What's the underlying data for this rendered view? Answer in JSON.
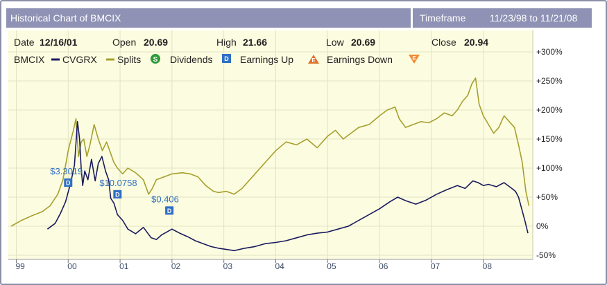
{
  "header": {
    "title": "Historical Chart of BMCIX",
    "timeframe_label": "Timeframe",
    "range": "11/23/98 to 11/21/08"
  },
  "ohlc": {
    "date_label": "Date",
    "date": "12/16/01",
    "open_label": "Open",
    "open": "20.69",
    "high_label": "High",
    "high": "21.66",
    "low_label": "Low",
    "low": "20.69",
    "close_label": "Close",
    "close": "20.94"
  },
  "legend": {
    "bmcix": "BMCIX",
    "cvgrx": "CVGRX",
    "splits": "Splits",
    "splits_icon_letter": "S",
    "dividends": "Dividends",
    "dividends_icon_letter": "D",
    "earnings_up": "Earnings Up",
    "earnings_up_icon_letter": "E",
    "earnings_down": "Earnings Down",
    "earnings_down_icon_letter": "E"
  },
  "colors": {
    "bmcix": "#1a1a5e",
    "cvgrx": "#a5a02e",
    "plot_bg": "#fcfce0",
    "grid": "#e2e2c4",
    "header_bg": "#8f92b4",
    "dividend_marker": "#2f6fc4",
    "splits_icon": "#2e9a3a",
    "earnings_up_icon": "#e07028",
    "earnings_down_icon": "#f08a30"
  },
  "icons": {
    "splits": "green-circle-s-icon",
    "dividends": "blue-square-d-icon",
    "earnings_up": "orange-triangle-up-e-icon",
    "earnings_down": "orange-triangle-down-e-icon"
  },
  "chart_data": {
    "type": "line",
    "y_unit": "percent change",
    "ylim": [
      -50,
      300
    ],
    "y_ticks": [
      -50,
      0,
      50,
      100,
      150,
      200,
      250,
      300
    ],
    "y_tick_labels": [
      "-50%",
      "0%",
      "+50%",
      "+100%",
      "+150%",
      "+200%",
      "+250%",
      "+300%"
    ],
    "x_ticks": [
      1999,
      2000,
      2001,
      2002,
      2003,
      2004,
      2005,
      2006,
      2007,
      2008
    ],
    "x_tick_labels": [
      "99",
      "00",
      "01",
      "02",
      "03",
      "04",
      "05",
      "06",
      "07",
      "08"
    ],
    "xlim": [
      1998.9,
      2008.9
    ],
    "grid": true,
    "series": [
      {
        "name": "BMCIX",
        "color": "#1a1a5e",
        "x": [
          1999.6,
          1999.75,
          1999.85,
          1999.95,
          2000.05,
          2000.12,
          2000.18,
          2000.22,
          2000.25,
          2000.28,
          2000.32,
          2000.38,
          2000.45,
          2000.52,
          2000.58,
          2000.65,
          2000.72,
          2000.78,
          2000.82,
          2000.88,
          2000.95,
          2001.05,
          2001.15,
          2001.3,
          2001.45,
          2001.6,
          2001.7,
          2001.8,
          2001.9,
          2002.0,
          2002.15,
          2002.3,
          2002.45,
          2002.6,
          2002.75,
          2002.9,
          2003.05,
          2003.2,
          2003.4,
          2003.6,
          2003.8,
          2004.0,
          2004.2,
          2004.4,
          2004.6,
          2004.8,
          2005.0,
          2005.2,
          2005.4,
          2005.6,
          2005.8,
          2006.0,
          2006.2,
          2006.35,
          2006.5,
          2006.7,
          2006.9,
          2007.1,
          2007.3,
          2007.5,
          2007.65,
          2007.8,
          2007.9,
          2008.0,
          2008.1,
          2008.25,
          2008.4,
          2008.55,
          2008.62,
          2008.68,
          2008.74,
          2008.8,
          2008.86
        ],
        "values": [
          -5,
          5,
          22,
          42,
          75,
          105,
          180,
          150,
          100,
          70,
          95,
          80,
          115,
          78,
          108,
          120,
          95,
          80,
          48,
          40,
          20,
          10,
          -5,
          -13,
          -2,
          -20,
          -23,
          -15,
          -10,
          -5,
          -12,
          -18,
          -25,
          -30,
          -35,
          -38,
          -40,
          -42,
          -38,
          -35,
          -30,
          -28,
          -25,
          -20,
          -15,
          -12,
          -10,
          -5,
          0,
          10,
          20,
          30,
          42,
          50,
          44,
          38,
          45,
          55,
          63,
          70,
          65,
          78,
          75,
          70,
          72,
          68,
          75,
          65,
          60,
          50,
          30,
          10,
          -12
        ]
      },
      {
        "name": "CVGRX",
        "color": "#a5a02e",
        "x": [
          1998.9,
          1999.1,
          1999.3,
          1999.5,
          1999.65,
          1999.8,
          1999.9,
          2000.0,
          2000.1,
          2000.15,
          2000.2,
          2000.25,
          2000.3,
          2000.36,
          2000.42,
          2000.5,
          2000.58,
          2000.66,
          2000.74,
          2000.8,
          2000.88,
          2000.95,
          2001.05,
          2001.15,
          2001.3,
          2001.45,
          2001.55,
          2001.62,
          2001.7,
          2001.85,
          2002.0,
          2002.2,
          2002.35,
          2002.5,
          2002.65,
          2002.8,
          2002.9,
          2003.05,
          2003.2,
          2003.35,
          2003.5,
          2003.65,
          2003.8,
          2004.0,
          2004.2,
          2004.4,
          2004.6,
          2004.8,
          2005.0,
          2005.15,
          2005.3,
          2005.45,
          2005.6,
          2005.8,
          2006.0,
          2006.15,
          2006.3,
          2006.38,
          2006.5,
          2006.65,
          2006.8,
          2006.95,
          2007.1,
          2007.25,
          2007.4,
          2007.5,
          2007.6,
          2007.7,
          2007.78,
          2007.85,
          2007.92,
          2008.0,
          2008.1,
          2008.2,
          2008.3,
          2008.4,
          2008.5,
          2008.6,
          2008.68,
          2008.75,
          2008.82,
          2008.88
        ],
        "values": [
          0,
          10,
          18,
          25,
          35,
          55,
          80,
          130,
          165,
          185,
          120,
          145,
          150,
          120,
          140,
          175,
          150,
          130,
          145,
          130,
          110,
          100,
          90,
          100,
          92,
          80,
          55,
          65,
          80,
          85,
          90,
          92,
          90,
          85,
          70,
          60,
          58,
          60,
          55,
          65,
          80,
          95,
          110,
          130,
          145,
          140,
          150,
          135,
          155,
          165,
          150,
          160,
          170,
          175,
          190,
          200,
          205,
          185,
          170,
          175,
          180,
          178,
          185,
          195,
          190,
          200,
          215,
          225,
          245,
          255,
          210,
          190,
          175,
          160,
          170,
          190,
          180,
          170,
          140,
          110,
          60,
          35
        ]
      }
    ],
    "annotations": [
      {
        "series": "BMCIX",
        "type": "dividend",
        "x": 2000.0,
        "y": 75,
        "label": "$3.3019"
      },
      {
        "series": "BMCIX",
        "type": "dividend",
        "x": 2000.95,
        "y": 55,
        "label": "$10.0758"
      },
      {
        "series": "BMCIX",
        "type": "dividend",
        "x": 2001.95,
        "y": 27,
        "label": "$0.406"
      }
    ]
  }
}
